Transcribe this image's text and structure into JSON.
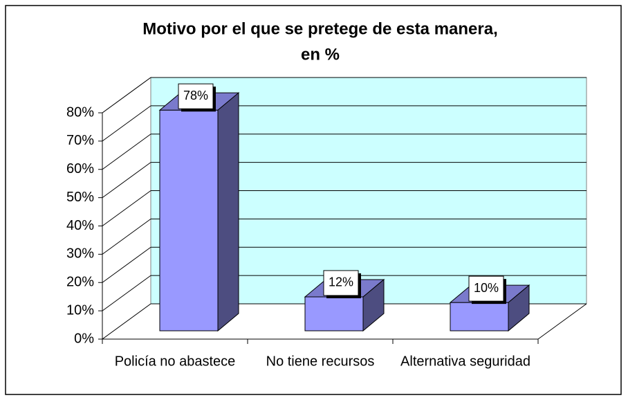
{
  "chart_data": {
    "type": "bar3d",
    "title": [
      "Motivo por el que se pretege de esta manera,",
      "en %"
    ],
    "categories": [
      "Policía no abastece",
      "No tiene recursos",
      "Alternativa seguridad"
    ],
    "values": [
      78,
      12,
      10
    ],
    "value_labels": [
      "78%",
      "12%",
      "10%"
    ],
    "color": "#9999ff",
    "wall_color": "#ccffff",
    "ylim": [
      0,
      80
    ],
    "yticks": [
      {
        "value": 0,
        "label": "0%"
      },
      {
        "value": 10,
        "label": "10%"
      },
      {
        "value": 20,
        "label": "20%"
      },
      {
        "value": 30,
        "label": "30%"
      },
      {
        "value": 40,
        "label": "40%"
      },
      {
        "value": 50,
        "label": "50%"
      },
      {
        "value": 60,
        "label": "60%"
      },
      {
        "value": 70,
        "label": "70%"
      },
      {
        "value": 80,
        "label": "80%"
      }
    ],
    "grid": true
  }
}
